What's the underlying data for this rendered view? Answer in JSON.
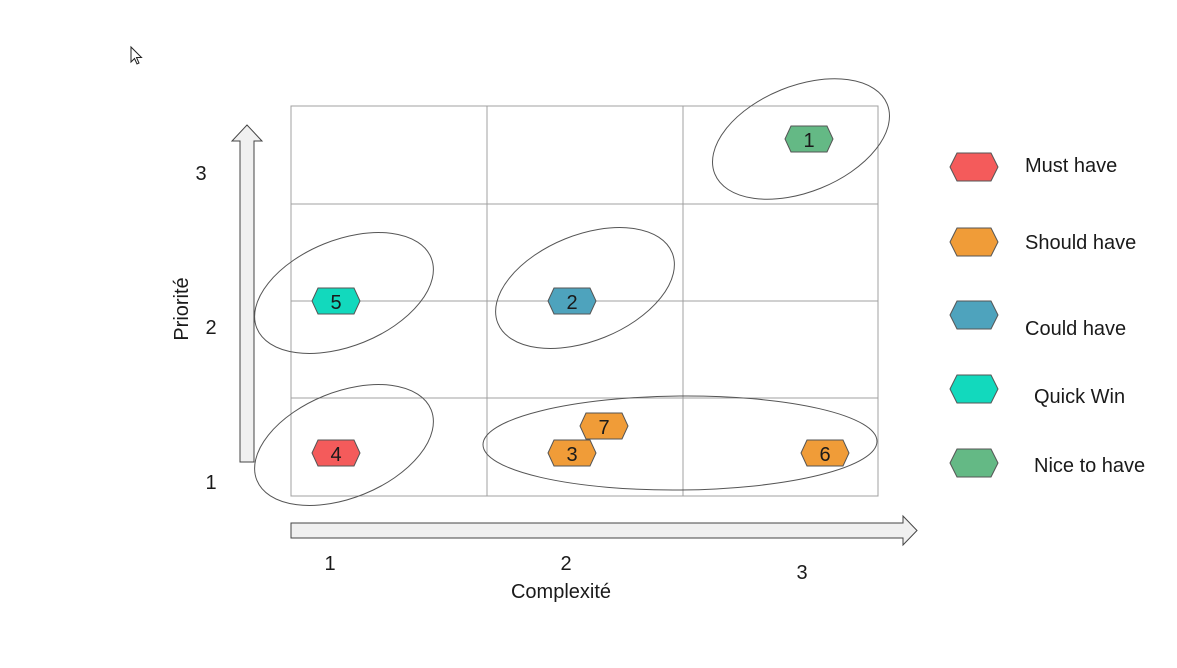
{
  "axes": {
    "x_label": "Complexité",
    "y_label": "Priorité",
    "x_ticks": [
      "1",
      "2",
      "3"
    ],
    "y_ticks": [
      "1",
      "2",
      "3"
    ]
  },
  "categories": [
    {
      "key": "must",
      "label": "Must have",
      "color": "#f45b5b"
    },
    {
      "key": "should",
      "label": "Should have",
      "color": "#f09c38"
    },
    {
      "key": "could",
      "label": "Could have",
      "color": "#4ea3bd"
    },
    {
      "key": "quick",
      "label": "Quick Win",
      "color": "#12d9bd"
    },
    {
      "key": "nice",
      "label": "Nice to have",
      "color": "#64b985"
    }
  ],
  "items": [
    {
      "id": "1",
      "category": "nice"
    },
    {
      "id": "2",
      "category": "could"
    },
    {
      "id": "3",
      "category": "should"
    },
    {
      "id": "4",
      "category": "must"
    },
    {
      "id": "5",
      "category": "quick"
    },
    {
      "id": "6",
      "category": "should"
    },
    {
      "id": "7",
      "category": "should"
    }
  ]
}
